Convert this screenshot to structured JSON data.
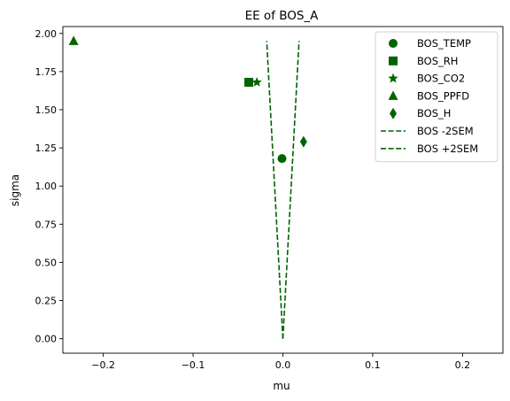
{
  "chart_data": {
    "type": "scatter",
    "title": "EE of BOS_A",
    "xlabel": "mu",
    "ylabel": "sigma",
    "xlim": [
      -0.245,
      0.245
    ],
    "ylim": [
      -0.095,
      2.045
    ],
    "xticks": [
      -0.2,
      -0.1,
      0.0,
      0.1,
      0.2
    ],
    "xtick_labels": [
      "−0.2",
      "−0.1",
      "0.0",
      "0.1",
      "0.2"
    ],
    "yticks": [
      0.0,
      0.25,
      0.5,
      0.75,
      1.0,
      1.25,
      1.5,
      1.75,
      2.0
    ],
    "ytick_labels": [
      "0.00",
      "0.25",
      "0.50",
      "0.75",
      "1.00",
      "1.25",
      "1.50",
      "1.75",
      "2.00"
    ],
    "grid": false,
    "legend_position": "top-right",
    "color": "#006400",
    "points": [
      {
        "name": "BOS_TEMP",
        "marker": "circle",
        "x": -0.001,
        "y": 1.18
      },
      {
        "name": "BOS_RH",
        "marker": "square",
        "x": -0.038,
        "y": 1.68
      },
      {
        "name": "BOS_CO2",
        "marker": "star",
        "x": -0.029,
        "y": 1.68
      },
      {
        "name": "BOS_PPFD",
        "marker": "triangle",
        "x": -0.233,
        "y": 1.95
      },
      {
        "name": "BOS_H",
        "marker": "diamond",
        "x": 0.023,
        "y": 1.29
      }
    ],
    "lines": [
      {
        "name": "BOS -2SEM",
        "style": "dashed",
        "x": [
          0.0,
          -0.018
        ],
        "y": [
          0.0,
          1.95
        ]
      },
      {
        "name": "BOS +2SEM",
        "style": "dashed",
        "x": [
          0.0,
          0.018
        ],
        "y": [
          0.0,
          1.95
        ]
      }
    ]
  }
}
